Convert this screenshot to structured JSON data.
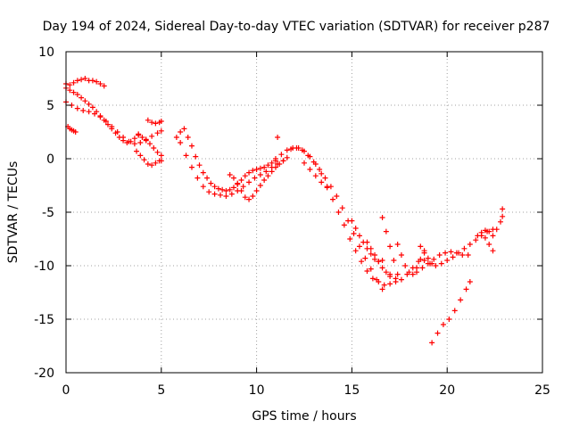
{
  "chart_data": {
    "type": "scatter",
    "title": "Day 194 of 2024, Sidereal Day-to-day VTEC variation (SDTVAR) for receiver p287",
    "xlabel": "GPS time / hours",
    "ylabel": "SDTVAR / TECUs",
    "xlim": [
      0,
      25
    ],
    "ylim": [
      -20,
      10
    ],
    "xticks": [
      "0",
      "5",
      "10",
      "15",
      "20",
      "25"
    ],
    "yticks": [
      "10",
      "5",
      "0",
      "-5",
      "-10",
      "-15",
      "-20"
    ],
    "grid": true,
    "marker": "+",
    "color": "#ff0000",
    "series": [
      {
        "x": [
          0.0,
          0.2,
          0.4,
          0.6,
          0.8,
          1.0,
          1.2,
          1.4,
          1.6,
          1.8,
          2.0
        ],
        "y": [
          7.0,
          6.9,
          7.1,
          7.3,
          7.4,
          7.5,
          7.3,
          7.3,
          7.2,
          7.0,
          6.8
        ]
      },
      {
        "x": [
          0.0,
          0.2,
          0.4,
          0.6,
          0.8,
          1.0,
          1.2,
          1.4,
          1.6,
          1.8,
          2.0,
          2.2,
          2.4,
          2.6,
          2.8,
          3.0,
          3.2,
          3.4,
          3.6,
          3.8
        ],
        "y": [
          6.6,
          6.4,
          6.2,
          6.0,
          5.7,
          5.4,
          5.1,
          4.8,
          4.4,
          4.0,
          3.6,
          3.2,
          2.8,
          2.4,
          2.0,
          1.7,
          1.5,
          1.6,
          1.9,
          2.2
        ]
      },
      {
        "x": [
          0.0,
          0.3,
          0.6,
          0.9,
          1.2,
          1.5,
          1.8,
          2.1,
          2.4,
          2.7,
          3.0,
          3.3,
          3.6,
          3.9,
          4.2,
          4.5,
          4.8,
          5.0
        ],
        "y": [
          5.3,
          5.0,
          4.7,
          4.5,
          4.4,
          4.2,
          3.9,
          3.5,
          3.0,
          2.5,
          2.0,
          1.6,
          1.4,
          1.5,
          1.8,
          2.1,
          2.4,
          2.6
        ]
      },
      {
        "x": [
          0.1,
          0.2,
          0.3,
          0.4,
          0.5
        ],
        "y": [
          3.0,
          2.8,
          2.7,
          2.6,
          2.5
        ]
      },
      {
        "x": [
          3.8,
          4.0,
          4.2,
          4.4,
          4.6,
          4.8,
          5.0
        ],
        "y": [
          2.3,
          2.0,
          1.7,
          1.4,
          1.0,
          0.6,
          0.3
        ]
      },
      {
        "x": [
          4.3,
          4.5,
          4.7,
          4.9,
          5.0
        ],
        "y": [
          3.6,
          3.4,
          3.3,
          3.4,
          3.5
        ]
      },
      {
        "x": [
          3.7,
          3.9,
          4.1,
          4.3,
          4.5,
          4.7,
          4.9,
          5.0
        ],
        "y": [
          0.7,
          0.3,
          -0.1,
          -0.5,
          -0.6,
          -0.4,
          -0.2,
          -0.2
        ]
      },
      {
        "x": [
          5.8,
          6.0,
          6.2,
          6.4,
          6.6,
          6.8,
          7.0,
          7.2,
          7.4,
          7.6,
          7.8,
          8.0,
          8.2,
          8.4,
          8.6,
          8.8,
          9.0,
          9.2,
          9.4,
          9.6,
          9.8,
          10.0,
          10.2,
          10.4,
          10.6,
          10.8,
          11.0
        ],
        "y": [
          2.0,
          2.5,
          2.8,
          2.0,
          1.2,
          0.2,
          -0.6,
          -1.3,
          -1.8,
          -2.3,
          -2.6,
          -2.8,
          -2.9,
          -3.0,
          -2.9,
          -2.7,
          -2.4,
          -2.0,
          -1.6,
          -1.3,
          -1.1,
          -1.0,
          -0.9,
          -0.8,
          -0.6,
          -0.4,
          -0.2
        ]
      },
      {
        "x": [
          6.0,
          6.3,
          6.6,
          6.9,
          7.2,
          7.5,
          7.8,
          8.1,
          8.4,
          8.7,
          9.0,
          9.3,
          9.6,
          9.9,
          10.2,
          10.5,
          10.8,
          11.1,
          11.4
        ],
        "y": [
          1.5,
          0.3,
          -0.8,
          -1.8,
          -2.6,
          -3.1,
          -3.3,
          -3.4,
          -3.5,
          -3.3,
          -3.0,
          -2.6,
          -2.2,
          -1.8,
          -1.5,
          -1.2,
          -0.8,
          -0.5,
          -0.2
        ]
      },
      {
        "x": [
          8.6,
          8.8,
          9.0,
          9.2,
          9.4,
          9.6,
          9.8,
          10.0,
          10.2,
          10.4,
          10.6,
          10.8,
          11.0,
          11.2,
          11.4,
          11.6
        ],
        "y": [
          -1.5,
          -1.8,
          -2.3,
          -3.0,
          -3.6,
          -3.8,
          -3.5,
          -3.0,
          -2.5,
          -2.0,
          -1.6,
          -1.2,
          -0.8,
          -0.5,
          -0.2,
          0.1
        ]
      },
      {
        "x": [
          11.1
        ],
        "y": [
          2.0
        ]
      },
      {
        "x": [
          11.0,
          11.3,
          11.6,
          11.9,
          12.2,
          12.5,
          12.8,
          13.1,
          13.4,
          13.7,
          14.0,
          14.3,
          14.6,
          14.9,
          15.2,
          15.5,
          15.8,
          16.1,
          16.4,
          16.7,
          17.0,
          17.3
        ],
        "y": [
          0.0,
          0.4,
          0.8,
          1.0,
          1.0,
          0.7,
          0.2,
          -0.5,
          -1.4,
          -2.6,
          -3.8,
          -5.0,
          -6.2,
          -7.5,
          -8.6,
          -9.6,
          -10.5,
          -11.2,
          -11.5,
          -11.8,
          -11.7,
          -11.2
        ]
      },
      {
        "x": [
          11.8,
          12.1,
          12.4,
          12.7,
          13.0,
          13.3,
          13.6,
          13.9,
          14.2,
          14.5,
          14.8,
          15.1,
          15.4,
          15.7,
          16.0,
          16.3,
          16.6
        ],
        "y": [
          0.9,
          1.0,
          0.8,
          0.3,
          -0.3,
          -1.0,
          -1.8,
          -2.6,
          -3.5,
          -4.6,
          -5.8,
          -7.0,
          -8.2,
          -9.3,
          -10.3,
          -11.3,
          -12.2
        ]
      },
      {
        "x": [
          12.5,
          12.8,
          13.1,
          13.4,
          13.7
        ],
        "y": [
          -0.4,
          -1.0,
          -1.6,
          -2.2,
          -2.7
        ]
      },
      {
        "x": [
          15.0,
          15.2,
          15.4,
          15.6,
          15.8,
          16.0,
          16.2,
          16.4,
          16.6
        ],
        "y": [
          -5.8,
          -6.5,
          -7.2,
          -7.8,
          -8.4,
          -8.9,
          -9.4,
          -9.6,
          -9.5
        ]
      },
      {
        "x": [
          15.8,
          16.0,
          16.2,
          16.4,
          16.6,
          16.8,
          17.0
        ],
        "y": [
          -7.8,
          -8.4,
          -9.0,
          -9.6,
          -10.2,
          -10.6,
          -10.8
        ]
      },
      {
        "x": [
          16.6,
          16.8,
          17.0,
          17.2,
          17.4
        ],
        "y": [
          -5.5,
          -6.8,
          -8.2,
          -9.5,
          -10.8
        ]
      },
      {
        "x": [
          17.0,
          17.3,
          17.6,
          17.9,
          18.2,
          18.5,
          18.8,
          19.1,
          19.4,
          19.7,
          20.0,
          20.3,
          20.6,
          20.9,
          21.2,
          21.5,
          21.8,
          22.1,
          22.4
        ],
        "y": [
          -11.0,
          -11.5,
          -11.3,
          -10.8,
          -10.2,
          -9.6,
          -9.5,
          -9.8,
          -10.0,
          -9.8,
          -9.5,
          -9.2,
          -8.8,
          -8.4,
          -8.0,
          -7.6,
          -7.2,
          -6.8,
          -6.6
        ]
      },
      {
        "x": [
          17.4,
          17.6,
          17.8,
          18.0,
          18.2,
          18.4,
          18.6,
          18.8
        ],
        "y": [
          -8.0,
          -9.0,
          -10.0,
          -10.6,
          -10.8,
          -10.2,
          -9.4,
          -8.6
        ]
      },
      {
        "x": [
          18.4,
          18.7,
          19.0,
          19.3,
          19.6,
          19.9,
          20.2,
          20.5,
          20.8,
          21.1
        ],
        "y": [
          -10.6,
          -10.2,
          -9.8,
          -9.4,
          -9.0,
          -8.8,
          -8.7,
          -8.8,
          -9.0,
          -9.0
        ]
      },
      {
        "x": [
          18.6,
          18.8,
          19.0,
          19.2
        ],
        "y": [
          -8.2,
          -8.8,
          -9.3,
          -9.8
        ]
      },
      {
        "x": [
          19.2,
          19.5,
          19.8,
          20.1,
          20.4,
          20.7,
          21.0,
          21.2
        ],
        "y": [
          -17.2,
          -16.3,
          -15.5,
          -15.0,
          -14.2,
          -13.2,
          -12.2,
          -11.5
        ]
      },
      {
        "x": [
          21.6,
          21.8,
          22.0,
          22.2,
          22.4,
          22.6,
          22.8,
          22.9
        ],
        "y": [
          -7.2,
          -6.9,
          -6.7,
          -6.8,
          -7.2,
          -6.6,
          -5.9,
          -5.4
        ]
      },
      {
        "x": [
          22.0,
          22.2,
          22.4
        ],
        "y": [
          -7.4,
          -8.0,
          -8.6
        ]
      },
      {
        "x": [
          22.9
        ],
        "y": [
          -4.7
        ]
      }
    ]
  }
}
